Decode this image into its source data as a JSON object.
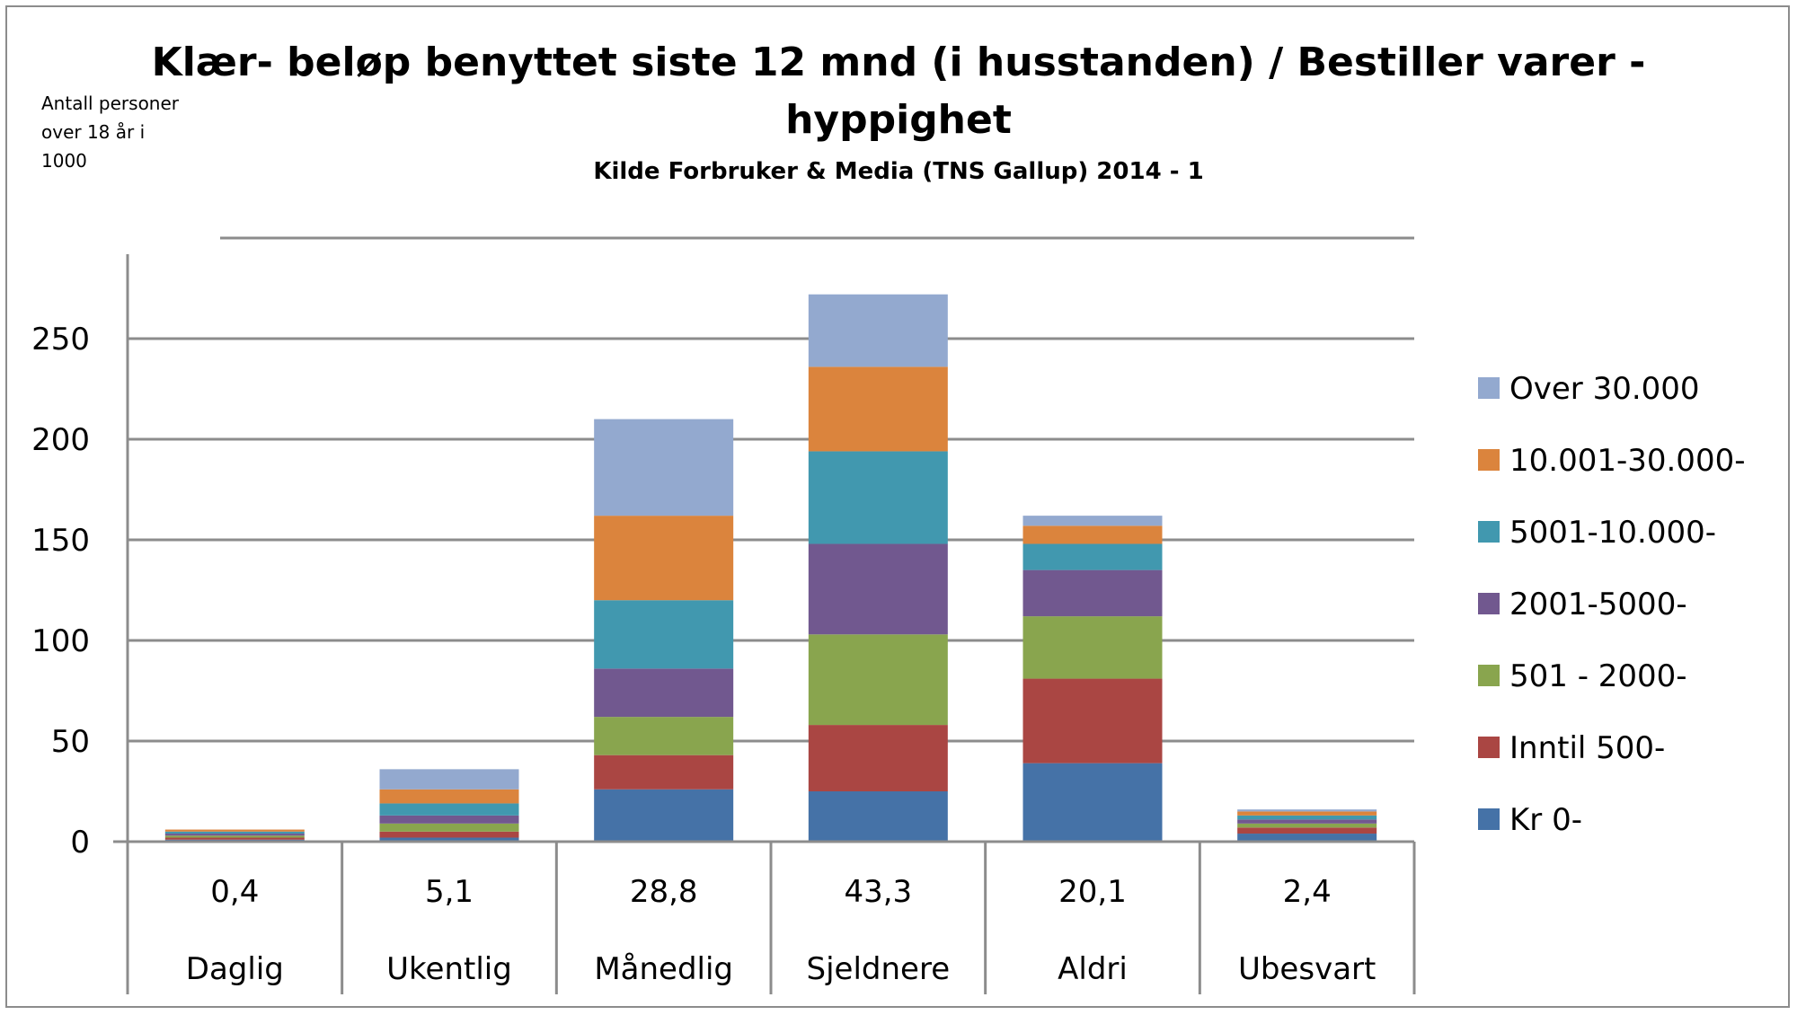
{
  "chart_data": {
    "type": "bar",
    "stacked": true,
    "title_line1": "Klær- beløp benyttet siste 12 mnd (i husstanden)  / Bestiller varer -",
    "title_line2": "hyppighet",
    "subtitle": "Kilde Forbruker & Media (TNS Gallup) 2014 - 1",
    "ylabel_lines": [
      "Antall personer",
      "over 18 år i",
      "1000"
    ],
    "ylim": [
      0,
      290
    ],
    "yticks": [
      0,
      50,
      100,
      150,
      200,
      250
    ],
    "grid": true,
    "legend_position": "right",
    "categories": [
      "Daglig",
      "Ukentlig",
      "Månedlig",
      "Sjeldnere",
      "Aldri",
      "Ubesvart"
    ],
    "category_values": [
      "0,4",
      "5,1",
      "28,8",
      "43,3",
      "20,1",
      "2,4"
    ],
    "series": [
      {
        "name": "Kr 0-",
        "color": "#4572A7",
        "values": [
          1,
          2,
          26,
          25,
          39,
          4
        ]
      },
      {
        "name": "Inntil 500-",
        "color": "#AA4643",
        "values": [
          1,
          3,
          17,
          33,
          42,
          3
        ]
      },
      {
        "name": "501 - 2000-",
        "color": "#89A54E",
        "values": [
          1,
          4,
          19,
          45,
          31,
          2
        ]
      },
      {
        "name": "2001-5000-",
        "color": "#71588F",
        "values": [
          1,
          4,
          24,
          45,
          23,
          2
        ]
      },
      {
        "name": "5001-10.000-",
        "color": "#4198AF",
        "values": [
          1,
          6,
          34,
          46,
          13,
          2
        ]
      },
      {
        "name": "10.001-30.000-",
        "color": "#DB843D",
        "values": [
          1,
          7,
          42,
          42,
          9,
          2
        ]
      },
      {
        "name": "Over 30.000",
        "color": "#93A9CF",
        "values": [
          0,
          10,
          48,
          36,
          5,
          1
        ]
      }
    ],
    "colors": {
      "grid": "#8c8c8c",
      "axis": "#8c8c8c",
      "frame": "#8c8c8c"
    }
  }
}
